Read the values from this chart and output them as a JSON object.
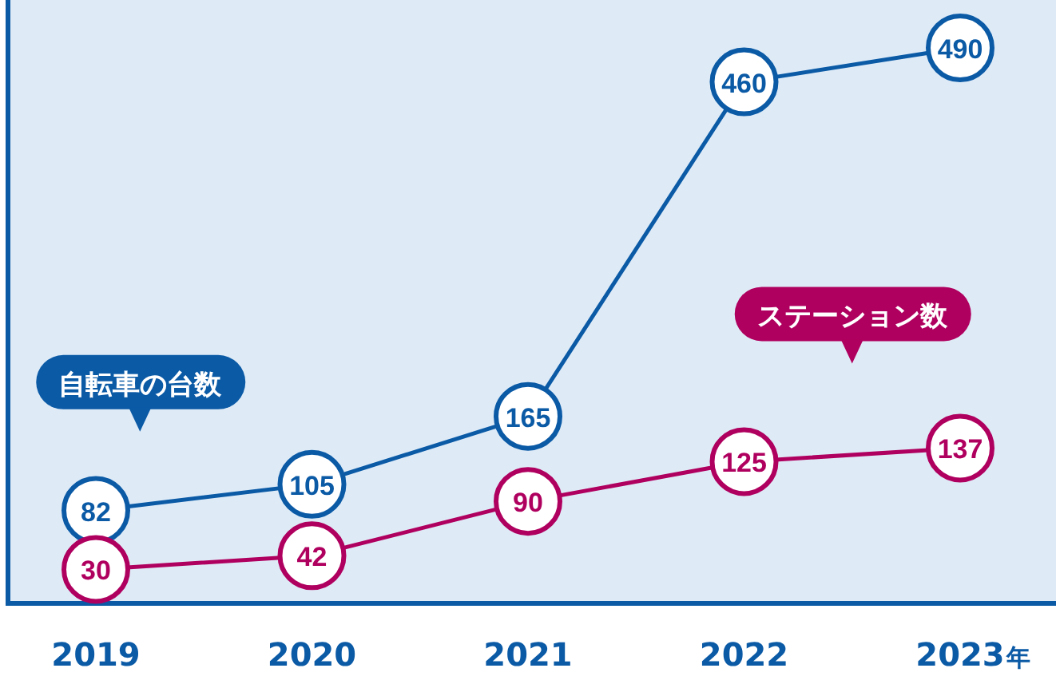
{
  "chart_data": {
    "type": "line",
    "xlabel": "年",
    "categories": [
      "2019",
      "2020",
      "2021",
      "2022",
      "2023"
    ],
    "series": [
      {
        "name": "自転車の台数",
        "color": "#0b5aa6",
        "values": [
          82,
          105,
          165,
          460,
          490
        ]
      },
      {
        "name": "ステーション数",
        "color": "#b0005f",
        "values": [
          30,
          42,
          90,
          125,
          137
        ]
      }
    ],
    "data_labels": true,
    "marker": "circle",
    "legend": false
  }
}
